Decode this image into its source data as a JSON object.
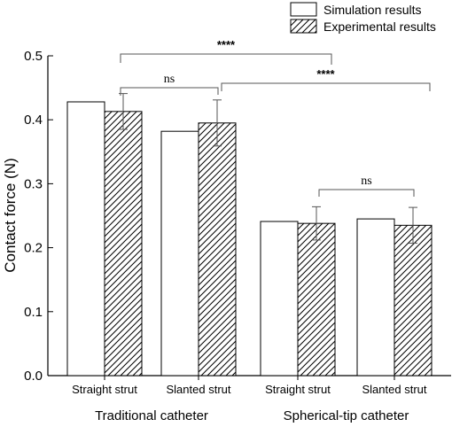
{
  "chart_data": {
    "type": "bar",
    "ylabel": "Contact force (N)",
    "ylim": [
      0,
      0.5
    ],
    "yticks": [
      "0.0",
      "0.1",
      "0.2",
      "0.3",
      "0.4",
      "0.5"
    ],
    "categories": [
      "Straight strut",
      "Slanted strut",
      "Straight strut",
      "Slanted strut"
    ],
    "groups": [
      {
        "label": "Traditional catheter",
        "categories": [
          0,
          1
        ]
      },
      {
        "label": "Spherical-tip catheter",
        "categories": [
          2,
          3
        ]
      }
    ],
    "series": [
      {
        "name": "Simulation results",
        "values": [
          0.428,
          0.382,
          0.241,
          0.245
        ],
        "pattern": "solid-white"
      },
      {
        "name": "Experimental results",
        "values": [
          0.413,
          0.395,
          0.238,
          0.235
        ],
        "errors": [
          0.028,
          0.036,
          0.026,
          0.028
        ],
        "pattern": "hatched"
      }
    ],
    "significance": [
      {
        "label": "****",
        "from": "Traditional catheter",
        "to": "Spherical-tip catheter, Straight strut"
      },
      {
        "label": "ns",
        "from": "Traditional catheter, Straight strut",
        "to": "Traditional catheter, Slanted strut"
      },
      {
        "label": "****",
        "from": "Traditional catheter, Slanted strut",
        "to": "Spherical-tip catheter, Slanted strut"
      },
      {
        "label": "ns",
        "from": "Spherical-tip catheter, Straight strut",
        "to": "Spherical-tip catheter, Slanted strut"
      }
    ],
    "legend": {
      "position": "top-right"
    }
  }
}
